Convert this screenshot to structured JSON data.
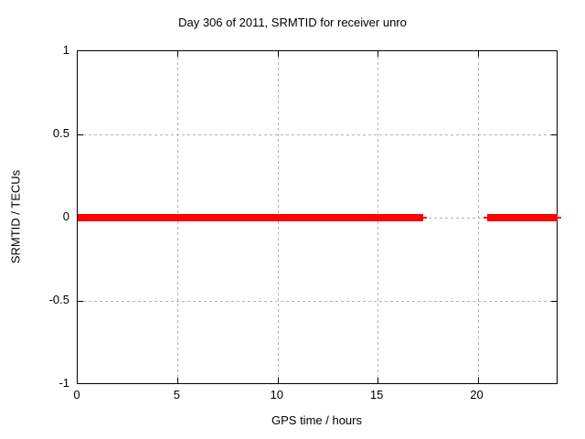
{
  "chart_data": {
    "type": "line",
    "title": "Day 306 of 2011, SRMTID for receiver unro",
    "xlabel": "GPS time / hours",
    "ylabel": "SRMTID / TECUs",
    "xlim": [
      0,
      24
    ],
    "ylim": [
      -1,
      1
    ],
    "xticks": [
      0,
      5,
      10,
      15,
      20
    ],
    "xtick_labels": [
      "0",
      "5",
      "10",
      "15",
      "20"
    ],
    "yticks": [
      1,
      0.5,
      0,
      -0.5,
      -1
    ],
    "ytick_labels": [
      "1",
      "0.5",
      "0",
      "-0.5",
      "-1"
    ],
    "grid": true,
    "grid_style": "dashed",
    "legend_position": "none",
    "series": [
      {
        "name": "SRMTID",
        "color": "#ff0000",
        "y": 0,
        "segments": [
          {
            "x_start": 0,
            "x_end": 17.3
          },
          {
            "x_start": 20.5,
            "x_end": 24
          }
        ]
      }
    ],
    "colors": {
      "background": "#ffffff",
      "border": "#000000",
      "grid": "#b3b3b3",
      "text": "#000000",
      "series": "#ff0000"
    }
  }
}
